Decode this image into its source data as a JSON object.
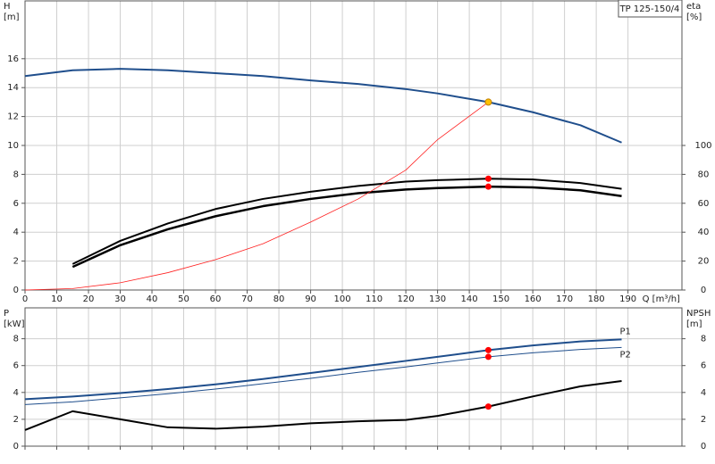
{
  "chart_data": [
    {
      "type": "line",
      "title": "TP 125-150/4",
      "ylabel": [
        "H",
        "[m]"
      ],
      "y2label": [
        "eta",
        "[%]"
      ],
      "xlabel": "Q [m³/h]",
      "x": [
        0,
        15,
        30,
        45,
        60,
        75,
        90,
        105,
        120,
        130,
        146,
        160,
        175,
        188
      ],
      "xlim": [
        0,
        207
      ],
      "xticks": [
        0,
        10,
        20,
        30,
        40,
        50,
        60,
        70,
        80,
        90,
        100,
        110,
        120,
        130,
        140,
        150,
        160,
        170,
        180,
        190
      ],
      "xtick_labels": true,
      "ylim": [
        0,
        20
      ],
      "yticks": [
        0,
        2,
        4,
        6,
        8,
        10,
        12,
        14,
        16
      ],
      "y2lim": [
        0,
        200
      ],
      "y2ticks": [
        0,
        20,
        40,
        60,
        80,
        100
      ],
      "grid": true,
      "series": [
        {
          "color": "#1f4e8c",
          "width": 2,
          "values": [
            14.8,
            15.2,
            15.3,
            15.2,
            15.0,
            14.8,
            14.5,
            14.25,
            13.9,
            13.6,
            13.0,
            12.3,
            11.4,
            10.2
          ]
        },
        {
          "color": "#000000",
          "width": 2,
          "axis": "y2",
          "values": [
            null,
            18,
            34,
            46,
            56,
            63,
            68,
            72,
            75,
            76,
            77,
            76.5,
            74,
            70
          ]
        },
        {
          "color": "#000000",
          "width": 2.5,
          "axis": "y2",
          "values": [
            null,
            16,
            31,
            42,
            51,
            58,
            63,
            67,
            69.5,
            70.5,
            71.5,
            71,
            69,
            65
          ]
        },
        {
          "color": "#ff2020",
          "width": 0.8,
          "values": [
            0,
            0.1,
            0.5,
            1.2,
            2.1,
            3.2,
            4.7,
            6.3,
            8.3,
            10.4,
            13.0,
            null,
            null,
            null
          ]
        }
      ],
      "markers": [
        {
          "x": 146,
          "value": 13.0,
          "color": "#ffc000"
        },
        {
          "x": 146,
          "value": 77,
          "color": "#ff0000",
          "axis": "y2"
        },
        {
          "x": 146,
          "value": 71.5,
          "color": "#ff0000",
          "axis": "y2"
        }
      ]
    },
    {
      "type": "line",
      "ylabel": [
        "P",
        "[kW]"
      ],
      "y2label": [
        "NPSH",
        "[m]"
      ],
      "x": [
        0,
        15,
        30,
        45,
        60,
        75,
        90,
        105,
        120,
        130,
        146,
        160,
        175,
        188
      ],
      "xlim": [
        0,
        207
      ],
      "xticks": [
        0,
        10,
        20,
        30,
        40,
        50,
        60,
        70,
        80,
        90,
        100,
        110,
        120,
        130,
        140,
        150,
        160,
        170,
        180,
        190
      ],
      "xtick_labels": false,
      "ylim": [
        0,
        10.3
      ],
      "yticks": [
        0,
        2,
        4,
        6,
        8
      ],
      "y2lim": [
        0,
        10.3
      ],
      "y2ticks": [
        0,
        2,
        4,
        6,
        8
      ],
      "grid": true,
      "series": [
        {
          "name": "P1",
          "color": "#1f4e8c",
          "width": 2,
          "values": [
            3.5,
            3.7,
            3.95,
            4.25,
            4.6,
            5.0,
            5.45,
            5.9,
            6.35,
            6.65,
            7.15,
            7.5,
            7.8,
            7.95
          ]
        },
        {
          "name": "P2",
          "color": "#1f4e8c",
          "width": 1,
          "values": [
            3.1,
            3.3,
            3.6,
            3.9,
            4.25,
            4.65,
            5.05,
            5.5,
            5.9,
            6.2,
            6.65,
            6.95,
            7.2,
            7.35
          ]
        },
        {
          "color": "#000000",
          "width": 2,
          "axis": "y2",
          "values": [
            1.2,
            2.6,
            2.0,
            1.4,
            1.3,
            1.45,
            1.7,
            1.85,
            1.95,
            2.25,
            2.95,
            3.7,
            4.45,
            4.85
          ]
        }
      ],
      "markers": [
        {
          "x": 146,
          "value": 7.15,
          "color": "#ff0000"
        },
        {
          "x": 146,
          "value": 6.65,
          "color": "#ff0000"
        },
        {
          "x": 146,
          "value": 2.95,
          "color": "#ff0000",
          "axis": "y2"
        }
      ]
    }
  ]
}
